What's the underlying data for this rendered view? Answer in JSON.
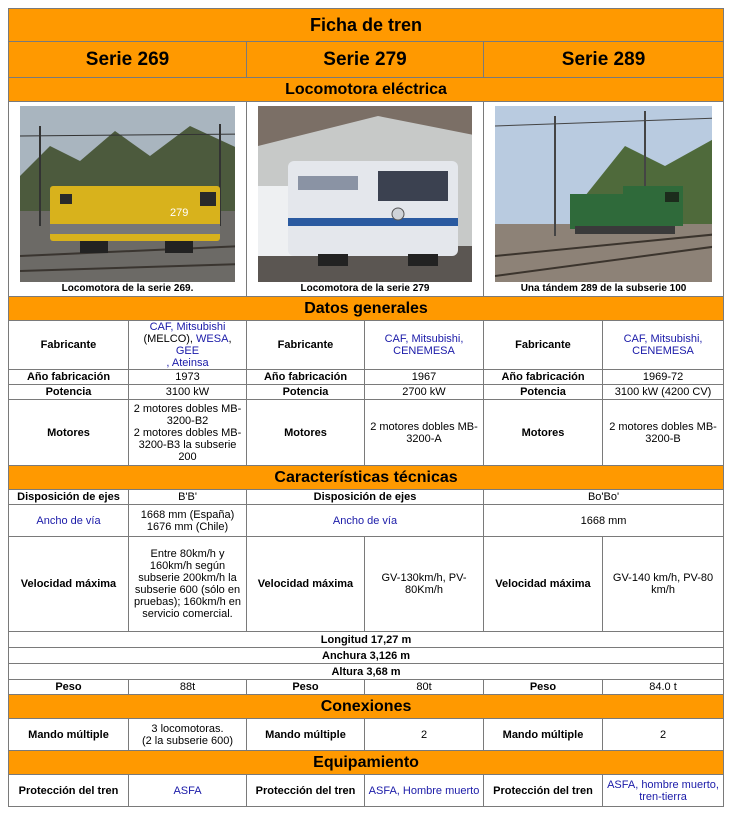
{
  "title": "Ficha de tren",
  "series": [
    "Serie 269",
    "Serie 279",
    "Serie 289"
  ],
  "sections": {
    "type": "Locomotora eléctrica",
    "general": "Datos generales",
    "technical": "Características técnicas",
    "connections": "Conexiones",
    "equipment": "Equipamiento"
  },
  "photos": [
    {
      "caption": "Locomotora de la serie 269.",
      "icon": "yellow-locomotive-photo",
      "body_color": "#d8b21c"
    },
    {
      "caption": "Locomotora de la serie 279",
      "icon": "white-locomotive-photo",
      "body_color": "#e4e7ec"
    },
    {
      "caption": "Una tándem 289 de la subserie 100",
      "icon": "green-tandem-locomotive-photo",
      "body_color": "#2f6a3a"
    }
  ],
  "labels": {
    "fabricante": "Fabricante",
    "anio": "Año fabricación",
    "potencia": "Potencia",
    "motores": "Motores",
    "ejes": "Disposición de ejes",
    "ancho": "Ancho de vía",
    "velocidad": "Velocidad máxima",
    "peso": "Peso",
    "mando": "Mando múltiple",
    "proteccion": "Protección del tren"
  },
  "s269": {
    "fab_a": "CAF, Mitsubishi",
    "fab_b": "(MELCO), ",
    "fab_c": "WESA",
    "fab_d": ", ",
    "fab_e": "GEE",
    "fab_f": ", Ateinsa",
    "anio": "1973",
    "potencia": "3100 kW",
    "motores_1": "2 motores dobles MB-3200-B2",
    "motores_2": "2 motores dobles MB-3200-B3 la subserie 200",
    "ancho_1": "1668 mm (España)",
    "ancho_2": "1676 mm (Chile)",
    "velocidad": "Entre 80km/h y 160km/h según subserie 200km/h la subserie 600 (sólo en pruebas); 160km/h en servicio comercial.",
    "peso": "88t",
    "mando_1": "3 locomotoras.",
    "mando_2": "(2 la subserie 600)",
    "proteccion": "ASFA"
  },
  "s279": {
    "fabricante": "CAF, Mitsubishi, CENEMESA",
    "anio": "1967",
    "potencia": "2700 kW",
    "motores": "2 motores dobles MB-3200-A",
    "velocidad": "GV-130km/h, PV-80Km/h",
    "peso": "80t",
    "mando": "2",
    "proteccion": "ASFA, Hombre muerto"
  },
  "s289": {
    "fabricante": "CAF, Mitsubishi, CENEMESA",
    "anio": "1969-72",
    "potencia": "3100 kW (4200 CV)",
    "motores": "2 motores dobles MB-3200-B",
    "velocidad": "GV-140 km/h, PV-80 km/h",
    "peso": "84.0 t",
    "mando": "2",
    "proteccion": "ASFA, hombre muerto, tren-tierra"
  },
  "shared": {
    "ejes_a": "B'B'",
    "ejes_b": "Bo'Bo'",
    "ancho_b": "1668 mm",
    "longitud": "Longitud 17,27 m",
    "anchura": "Anchura 3,126 m",
    "altura": "Altura 3,68 m"
  }
}
